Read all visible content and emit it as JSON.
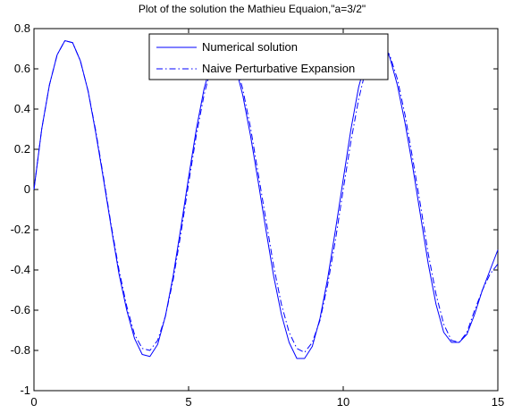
{
  "chart_data": {
    "type": "line",
    "title": "Plot of the solution the Mathieu Equaion,\"a=3/2\"",
    "xlabel": "",
    "ylabel": "",
    "xlim": [
      0,
      15
    ],
    "ylim": [
      -1,
      0.8
    ],
    "xticks": [
      0,
      5,
      10,
      15
    ],
    "yticks": [
      -1,
      -0.8,
      -0.6,
      -0.4,
      -0.2,
      0,
      0.2,
      0.4,
      0.6,
      0.8
    ],
    "grid": false,
    "legend_position": "top-center",
    "series": [
      {
        "name": "Numerical solution",
        "style": "solid",
        "color": "#0000ff",
        "x": [
          0,
          0.25,
          0.5,
          0.75,
          1,
          1.25,
          1.5,
          1.75,
          2,
          2.25,
          2.5,
          2.75,
          3,
          3.25,
          3.5,
          3.75,
          4,
          4.25,
          4.5,
          4.75,
          5,
          5.25,
          5.5,
          5.75,
          6,
          6.25,
          6.5,
          6.75,
          7,
          7.25,
          7.5,
          7.75,
          8,
          8.25,
          8.5,
          8.75,
          9,
          9.25,
          9.5,
          9.75,
          10,
          10.25,
          10.5,
          10.75,
          11,
          11.25,
          11.5,
          11.75,
          12,
          12.25,
          12.5,
          12.75,
          13,
          13.25,
          13.5,
          13.75,
          14,
          14.25,
          14.5,
          14.75,
          15
        ],
        "y": [
          0.0,
          0.3,
          0.52,
          0.67,
          0.74,
          0.73,
          0.64,
          0.49,
          0.28,
          0.05,
          -0.19,
          -0.42,
          -0.6,
          -0.74,
          -0.82,
          -0.83,
          -0.77,
          -0.63,
          -0.43,
          -0.19,
          0.06,
          0.3,
          0.5,
          0.64,
          0.71,
          0.7,
          0.62,
          0.47,
          0.27,
          0.04,
          -0.2,
          -0.43,
          -0.62,
          -0.76,
          -0.84,
          -0.84,
          -0.78,
          -0.64,
          -0.44,
          -0.2,
          0.05,
          0.3,
          0.51,
          0.65,
          0.72,
          0.73,
          0.66,
          0.52,
          0.33,
          0.11,
          -0.13,
          -0.37,
          -0.57,
          -0.71,
          -0.76,
          -0.76,
          -0.72,
          -0.62,
          -0.5,
          -0.4,
          -0.3
        ]
      },
      {
        "name": "Naive Perturbative Expansion",
        "style": "dashdot",
        "color": "#0000ff",
        "x": [
          0,
          0.25,
          0.5,
          0.75,
          1,
          1.25,
          1.5,
          1.75,
          2,
          2.25,
          2.5,
          2.75,
          3,
          3.25,
          3.5,
          3.75,
          4,
          4.25,
          4.5,
          4.75,
          5,
          5.25,
          5.5,
          5.75,
          6,
          6.25,
          6.5,
          6.75,
          7,
          7.25,
          7.5,
          7.75,
          8,
          8.25,
          8.5,
          8.75,
          9,
          9.25,
          9.5,
          9.75,
          10,
          10.25,
          10.5,
          10.75,
          11,
          11.25,
          11.5,
          11.75,
          12,
          12.25,
          12.5,
          12.75,
          13,
          13.25,
          13.5,
          13.75,
          14,
          14.25,
          14.5,
          14.75,
          15
        ],
        "y": [
          0.0,
          0.3,
          0.52,
          0.67,
          0.74,
          0.73,
          0.64,
          0.49,
          0.29,
          0.06,
          -0.18,
          -0.4,
          -0.58,
          -0.72,
          -0.79,
          -0.8,
          -0.75,
          -0.63,
          -0.45,
          -0.22,
          0.03,
          0.27,
          0.47,
          0.62,
          0.7,
          0.71,
          0.64,
          0.5,
          0.31,
          0.08,
          -0.15,
          -0.38,
          -0.57,
          -0.71,
          -0.79,
          -0.81,
          -0.76,
          -0.65,
          -0.47,
          -0.25,
          0.0,
          0.24,
          0.45,
          0.61,
          0.7,
          0.72,
          0.67,
          0.55,
          0.37,
          0.15,
          -0.08,
          -0.32,
          -0.52,
          -0.67,
          -0.75,
          -0.76,
          -0.71,
          -0.6,
          -0.5,
          -0.42,
          -0.37
        ]
      }
    ]
  }
}
